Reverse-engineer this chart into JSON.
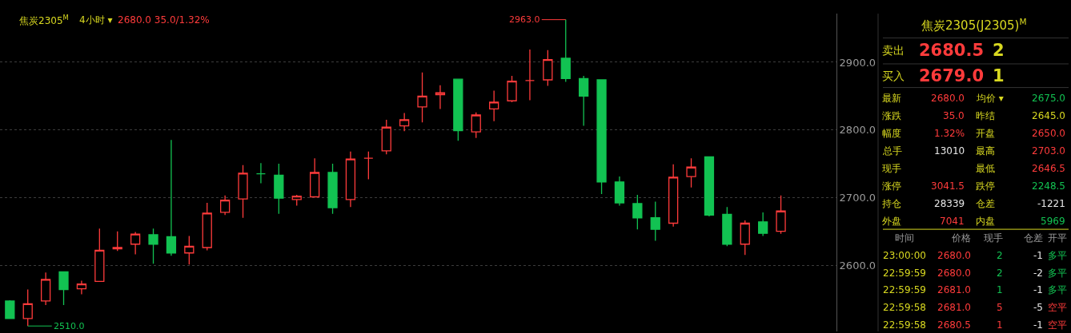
{
  "chart_data": [
    {
      "type": "candlestick",
      "title": "焦炭2305$^{M}$",
      "subtitle": "4小时 ▾",
      "categories": [
        null,
        null,
        null,
        null,
        null,
        null,
        null,
        null,
        null,
        null,
        null,
        null,
        null,
        null,
        null,
        null,
        null,
        null,
        null,
        null,
        null,
        null,
        null,
        null,
        null,
        null,
        null,
        null,
        null,
        null,
        null,
        null,
        null,
        null,
        null,
        null,
        null,
        null,
        null,
        null,
        null,
        null,
        null,
        null
      ],
      "ohlc": [
        [
          2547,
          2548,
          2521,
          2521
        ],
        [
          2521,
          2564,
          2510,
          2543
        ],
        [
          2547,
          2589,
          2541,
          2579
        ],
        [
          2590,
          2590,
          2541,
          2564
        ],
        [
          2565,
          2577,
          2557,
          2572
        ],
        [
          2576,
          2654,
          2576,
          2622
        ],
        [
          2624,
          2650,
          2621,
          2626
        ],
        [
          2631,
          2649,
          2616,
          2646
        ],
        [
          2645,
          2654,
          2602,
          2631
        ],
        [
          2642,
          2785,
          2614,
          2618
        ],
        [
          2618,
          2643,
          2601,
          2628
        ],
        [
          2626,
          2692,
          2622,
          2677
        ],
        [
          2678,
          2703,
          2674,
          2696
        ],
        [
          2698,
          2748,
          2670,
          2736
        ],
        [
          2735,
          2751,
          2721,
          2735
        ],
        [
          2733,
          2750,
          2676,
          2699
        ],
        [
          2697,
          2704,
          2688,
          2702
        ],
        [
          2701,
          2758,
          2701,
          2737
        ],
        [
          2737,
          2750,
          2676,
          2685
        ],
        [
          2697,
          2768,
          2686,
          2757
        ],
        [
          2758,
          2768,
          2727,
          2758
        ],
        [
          2769,
          2815,
          2764,
          2804
        ],
        [
          2806,
          2825,
          2798,
          2815
        ],
        [
          2834,
          2885,
          2811,
          2850
        ],
        [
          2852,
          2866,
          2831,
          2855
        ],
        [
          2875,
          2875,
          2784,
          2799
        ],
        [
          2797,
          2826,
          2788,
          2822
        ],
        [
          2831,
          2858,
          2813,
          2841
        ],
        [
          2843,
          2880,
          2841,
          2872
        ],
        [
          2873,
          2919,
          2844,
          2873
        ],
        [
          2874,
          2918,
          2865,
          2904
        ],
        [
          2906,
          2963,
          2871,
          2876
        ],
        [
          2876,
          2880,
          2806,
          2850
        ],
        [
          2874,
          2874,
          2705,
          2723
        ],
        [
          2723,
          2731,
          2688,
          2692
        ],
        [
          2691,
          2704,
          2653,
          2670
        ],
        [
          2670,
          2694,
          2636,
          2653
        ],
        [
          2662,
          2749,
          2657,
          2730
        ],
        [
          2731,
          2758,
          2715,
          2745
        ],
        [
          2760,
          2761,
          2672,
          2674
        ],
        [
          2675,
          2686,
          2628,
          2631
        ],
        [
          2631,
          2666,
          2615,
          2662
        ],
        [
          2664,
          2678,
          2643,
          2647
        ],
        [
          2650,
          2703,
          2646.5,
          2680
        ]
      ],
      "ylim": [
        2502,
        2972
      ],
      "yticks": [
        {
          "value": 2600,
          "label": "2600.0"
        },
        {
          "value": 2700,
          "label": "2700.0"
        },
        {
          "value": 2800,
          "label": "2800.0"
        },
        {
          "value": 2900,
          "label": "2900.0"
        }
      ],
      "grid": "y",
      "tick_labels": "y",
      "annotations": [
        "2680.0 35.0/1.32%",
        "2963.0",
        "2510.0"
      ]
    },
    {
      "type": "other",
      "title": "焦炭2305(J2305)$^{M}$",
      "annotations": [
        "卖出",
        "2680.5",
        "2",
        "买入",
        "2679.0",
        "1",
        "最新",
        "2680.0",
        "均价 ▾",
        "2675.0",
        "涨跌",
        "35.0",
        "昨结",
        "2645.0",
        "幅度",
        "1.32%",
        "开盘",
        "2650.0",
        "总手",
        "13010",
        "最高",
        "2703.0",
        "现手",
        "最低",
        "2646.5",
        "涨停",
        "3041.5",
        "跌停",
        "2248.5",
        "持仓",
        "28339",
        "仓差",
        "-1221",
        "外盘",
        "7041",
        "内盘",
        "5969",
        "时间",
        "价格",
        "现手",
        "仓差",
        "开平",
        "23:00:00",
        "2680.0",
        "2",
        "-1",
        "多平",
        "22:59:59",
        "2680.0",
        "2",
        "-2",
        "多平",
        "22:59:59",
        "2681.0",
        "1",
        "-1",
        "多平",
        "22:59:58",
        "2681.0",
        "5",
        "-5",
        "空平",
        "22:59:58",
        "2680.5",
        "1",
        "-1",
        "空平"
      ]
    }
  ]
}
